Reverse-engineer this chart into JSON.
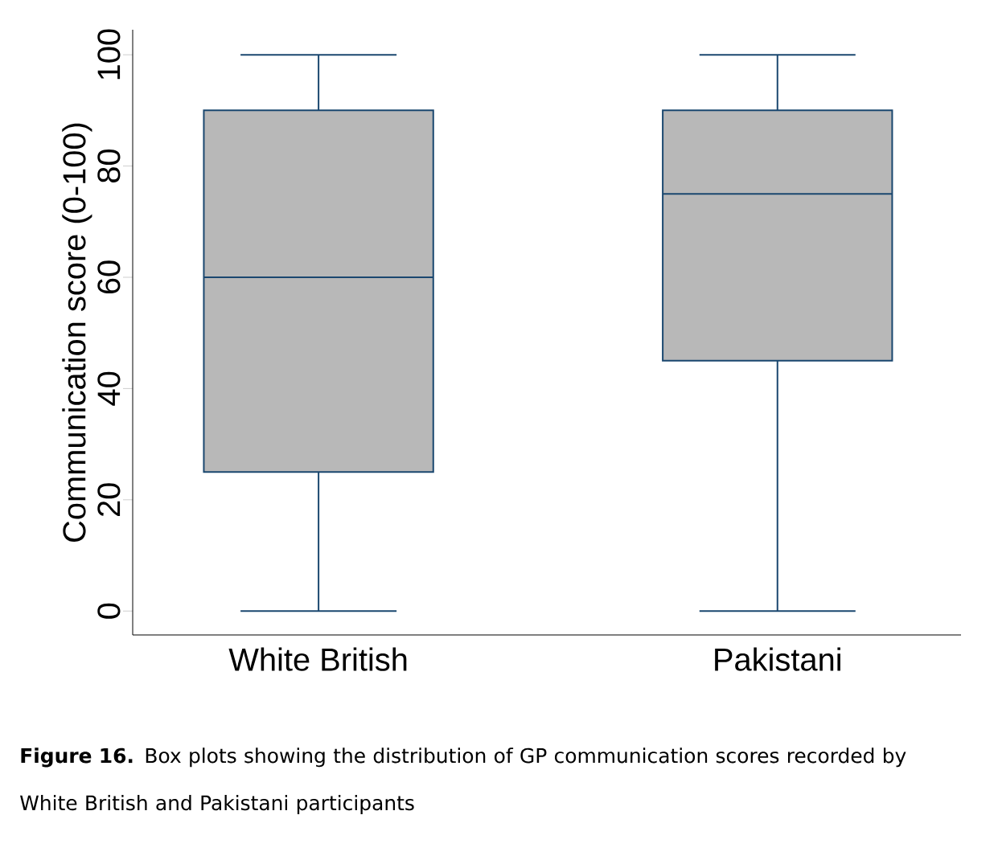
{
  "chart_data": {
    "type": "box",
    "ylabel": "Communication score (0-100)",
    "categories": [
      "White British",
      "Pakistani"
    ],
    "boxes": [
      {
        "low": 0,
        "q1": 25,
        "median": 60,
        "q3": 90,
        "high": 100
      },
      {
        "low": 0,
        "q1": 45,
        "median": 75,
        "q3": 90,
        "high": 100
      }
    ],
    "color": "#b8b8b8",
    "ylim": [
      -4.3,
      104.5
    ],
    "yticks": [
      0,
      20,
      40,
      60,
      80,
      100
    ],
    "grid": false,
    "annotations": [
      "**Figure 16.** Box plots showing the distribution of GP communication scores recorded by White British and Pakistani participants"
    ]
  }
}
